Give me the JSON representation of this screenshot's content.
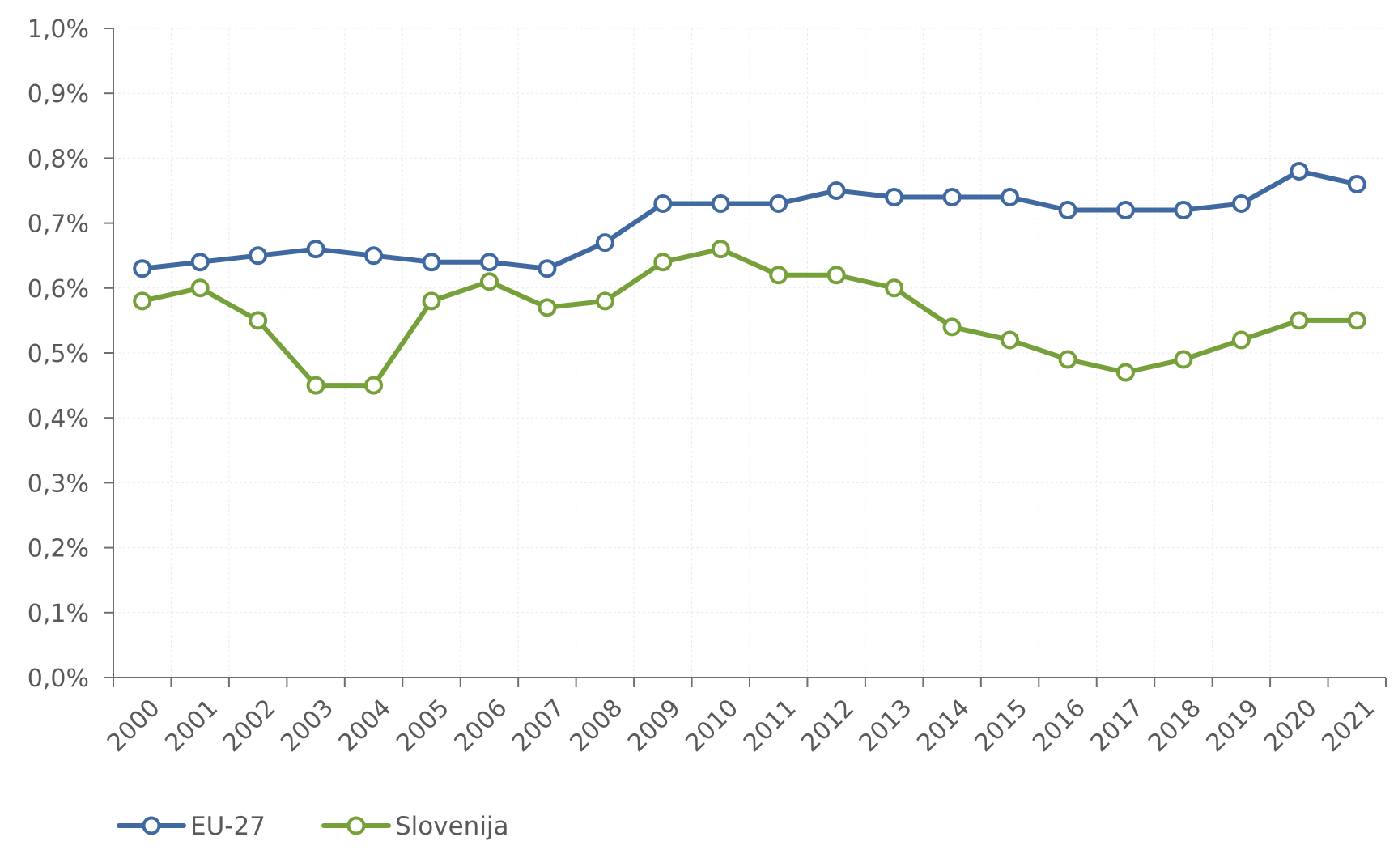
{
  "chart_data": {
    "type": "line",
    "title": "",
    "xlabel": "",
    "ylabel": "",
    "categories": [
      "2000",
      "2001",
      "2002",
      "2003",
      "2004",
      "2005",
      "2006",
      "2007",
      "2008",
      "2009",
      "2010",
      "2011",
      "2012",
      "2013",
      "2014",
      "2015",
      "2016",
      "2017",
      "2018",
      "2019",
      "2020",
      "2021"
    ],
    "ylim": [
      0,
      1.0
    ],
    "yticks": [
      0,
      0.1,
      0.2,
      0.3,
      0.4,
      0.5,
      0.6,
      0.7,
      0.8,
      0.9,
      1.0
    ],
    "ytick_labels": [
      "0,0%",
      "0,1%",
      "0,2%",
      "0,3%",
      "0,4%",
      "0,5%",
      "0,6%",
      "0,7%",
      "0,8%",
      "0,9%",
      "1,0%"
    ],
    "grid": true,
    "legend_position": "bottom-left",
    "series": [
      {
        "name": "EU-27",
        "color": "#4169a1",
        "values": [
          0.63,
          0.64,
          0.65,
          0.66,
          0.65,
          0.64,
          0.64,
          0.63,
          0.67,
          0.73,
          0.73,
          0.73,
          0.75,
          0.74,
          0.74,
          0.74,
          0.72,
          0.72,
          0.72,
          0.73,
          0.78,
          0.76
        ]
      },
      {
        "name": "Slovenija",
        "color": "#76a03a",
        "values": [
          0.58,
          0.6,
          0.55,
          0.45,
          0.45,
          0.58,
          0.61,
          0.57,
          0.58,
          0.64,
          0.66,
          0.62,
          0.62,
          0.6,
          0.54,
          0.52,
          0.49,
          0.47,
          0.49,
          0.52,
          0.55,
          0.55
        ]
      }
    ]
  }
}
